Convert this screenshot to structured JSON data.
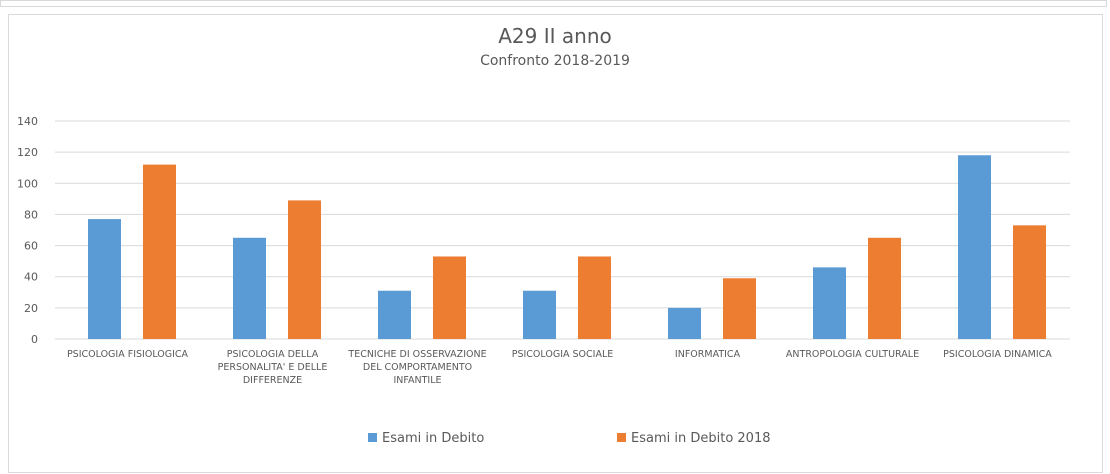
{
  "chart_data": {
    "type": "bar",
    "title": "A29 II anno",
    "subtitle": "Confronto 2018-2019",
    "categories": [
      "PSICOLOGIA FISIOLOGICA",
      "PSICOLOGIA DELLA PERSONALITA' E DELLE DIFFERENZE",
      "TECNICHE DI OSSERVAZIONE DEL COMPORTAMENTO INFANTILE",
      "PSICOLOGIA SOCIALE",
      "INFORMATICA",
      "ANTROPOLOGIA CULTURALE",
      "PSICOLOGIA DINAMICA"
    ],
    "series": [
      {
        "name": "Esami in Debito",
        "color": "#5b9bd5",
        "values": [
          77,
          65,
          31,
          31,
          20,
          46,
          118
        ]
      },
      {
        "name": "Esami in Debito 2018",
        "color": "#ed7d31",
        "values": [
          112,
          89,
          53,
          53,
          39,
          65,
          73
        ]
      }
    ],
    "ylim": [
      0,
      140
    ],
    "yticks": [
      0,
      20,
      40,
      60,
      80,
      100,
      120,
      140
    ],
    "grid": true,
    "legend": "bottom"
  }
}
